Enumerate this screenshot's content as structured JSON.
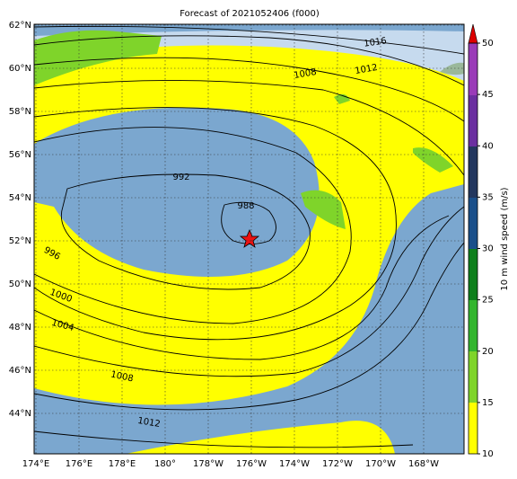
{
  "title": "Forecast of 2021052406 (f000)",
  "latitude_labels": [
    "62°N",
    "60°N",
    "58°N",
    "56°N",
    "54°N",
    "52°N",
    "50°N",
    "48°N",
    "46°N",
    "44°N"
  ],
  "longitude_labels": [
    "174°E",
    "176°E",
    "178°E",
    "180°",
    "178°W",
    "176°W",
    "174°W",
    "172°W",
    "170°W",
    "168°W"
  ],
  "isobar_labels": [
    "1016",
    "1012",
    "1008",
    "992",
    "988",
    "996",
    "1000",
    "1004",
    "1008",
    "1012"
  ],
  "colorbar": {
    "label": "10 m wind speed (m/s)",
    "ticks": [
      10,
      15,
      20,
      25,
      30,
      35,
      40,
      45,
      50
    ]
  }
}
